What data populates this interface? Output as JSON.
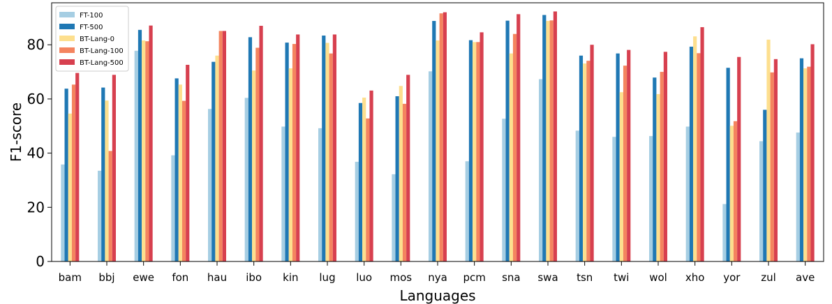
{
  "chart_data": {
    "type": "bar",
    "xlabel": "Languages",
    "ylabel": "F1-score",
    "ylim": [
      0,
      95.5
    ],
    "yticks": [
      0,
      20,
      40,
      60,
      80
    ],
    "grid": false,
    "legend_position": "top-left",
    "categories": [
      "bam",
      "bbj",
      "ewe",
      "fon",
      "hau",
      "ibo",
      "kin",
      "lug",
      "luo",
      "mos",
      "nya",
      "pcm",
      "sna",
      "swa",
      "tsn",
      "twi",
      "wol",
      "xho",
      "yor",
      "zul",
      "ave"
    ],
    "series": [
      {
        "name": "FT-100",
        "color": "#a6cee3",
        "values": [
          35.8,
          33.5,
          77.8,
          39.2,
          56.3,
          60.4,
          49.8,
          49.2,
          36.8,
          32.2,
          70.2,
          37.0,
          52.7,
          67.3,
          48.3,
          46.0,
          46.3,
          49.8,
          21.2,
          44.4,
          47.6
        ]
      },
      {
        "name": "FT-500",
        "color": "#1f78b4",
        "values": [
          63.8,
          64.2,
          85.5,
          67.6,
          73.7,
          82.8,
          80.8,
          83.4,
          58.5,
          61.0,
          88.8,
          81.7,
          88.9,
          91.0,
          76.0,
          76.8,
          67.9,
          79.3,
          71.5,
          56.0,
          75.0
        ]
      },
      {
        "name": "BT-Lang-0",
        "color": "#fddf8e",
        "values": [
          54.6,
          59.4,
          81.6,
          65.3,
          76.0,
          70.5,
          71.3,
          80.7,
          60.5,
          64.8,
          81.6,
          81.0,
          76.8,
          88.8,
          73.1,
          62.5,
          61.8,
          83.1,
          50.1,
          81.9,
          71.3
        ]
      },
      {
        "name": "BT-Lang-100",
        "color": "#f4845f",
        "values": [
          65.3,
          40.8,
          81.3,
          59.3,
          85.1,
          78.9,
          80.3,
          76.8,
          52.8,
          58.2,
          91.6,
          81.0,
          84.0,
          89.0,
          74.1,
          72.3,
          70.0,
          76.9,
          51.8,
          69.8,
          71.9
        ]
      },
      {
        "name": "BT-Lang-500",
        "color": "#d7404f",
        "values": [
          69.6,
          68.9,
          87.1,
          72.6,
          85.1,
          87.0,
          83.8,
          83.8,
          63.1,
          68.9,
          92.0,
          84.6,
          91.3,
          92.3,
          80.0,
          78.1,
          77.4,
          86.5,
          75.5,
          74.7,
          80.2
        ]
      }
    ]
  }
}
